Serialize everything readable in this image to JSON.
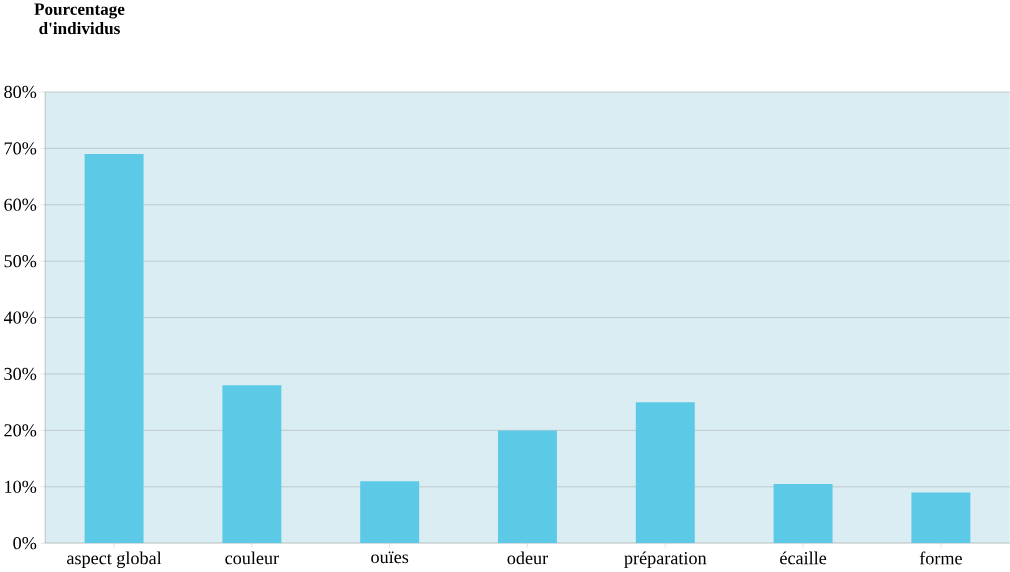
{
  "chart_data": {
    "type": "bar",
    "ylabel": "Pourcentage d'individus",
    "categories": [
      "aspect global",
      "couleur",
      "ouïes",
      "odeur",
      "préparation",
      "écaille",
      "forme"
    ],
    "values": [
      69,
      28,
      11,
      20,
      25,
      10.5,
      9
    ],
    "color": "#5cc9e6",
    "ylim": [
      0,
      80
    ],
    "yticks": [
      {
        "value": 0,
        "label": "0%"
      },
      {
        "value": 10,
        "label": "10%"
      },
      {
        "value": 20,
        "label": "20%"
      },
      {
        "value": 30,
        "label": "30%"
      },
      {
        "value": 40,
        "label": "40%"
      },
      {
        "value": 50,
        "label": "50%"
      },
      {
        "value": 60,
        "label": "60%"
      },
      {
        "value": 70,
        "label": "70%"
      },
      {
        "value": 80,
        "label": "80%"
      }
    ],
    "grid": "y"
  }
}
